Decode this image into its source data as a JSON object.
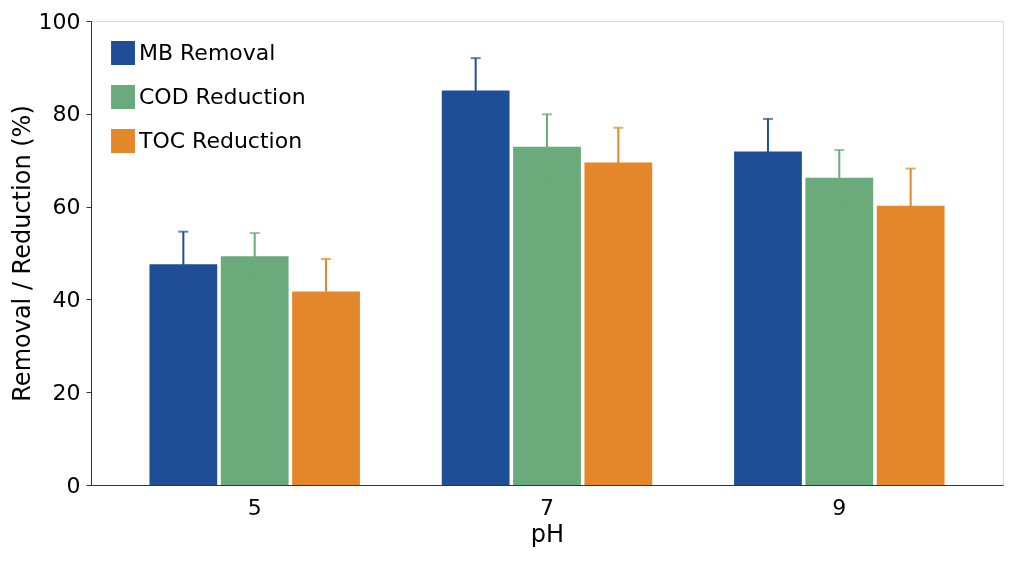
{
  "chart_data": {
    "type": "bar",
    "xlabel": "pH",
    "ylabel": "Removal / Reduction (%)",
    "categories": [
      "5",
      "7",
      "9"
    ],
    "series": [
      {
        "name": "MB Removal",
        "color": "#1f4e96",
        "values": [
          47.6,
          85,
          71.9
        ],
        "errors": [
          7,
          7,
          7
        ]
      },
      {
        "name": "COD Reduction",
        "color": "#6aaa7b",
        "values": [
          49.3,
          72.9,
          66.2
        ],
        "errors": [
          5,
          7,
          6
        ]
      },
      {
        "name": "TOC Reduction",
        "color": "#e4862a",
        "values": [
          41.7,
          69.5,
          60.2
        ],
        "errors": [
          7,
          7.5,
          8
        ]
      }
    ],
    "ylim": [
      0,
      100
    ],
    "yticks": [
      0,
      20,
      40,
      60,
      80,
      100
    ],
    "grid": false,
    "legend": "top left"
  }
}
